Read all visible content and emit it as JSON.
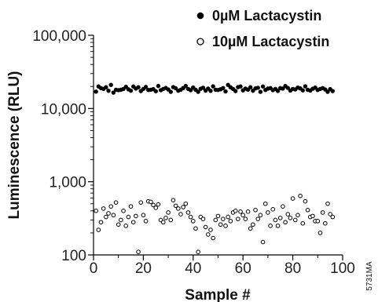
{
  "chart_data": {
    "type": "scatter",
    "title": "",
    "xlabel": "Sample #",
    "ylabel": "Luminescence (RLU)",
    "xlim": [
      0,
      100
    ],
    "ylim": [
      100,
      100000
    ],
    "y_scale": "log",
    "x_ticks": [
      0,
      20,
      40,
      60,
      80,
      100
    ],
    "x_tick_labels": [
      "0",
      "20",
      "40",
      "60",
      "80",
      "100"
    ],
    "y_ticks": [
      100,
      1000,
      10000,
      100000
    ],
    "y_tick_labels": [
      "100",
      "1,000",
      "10,000",
      "100,000"
    ],
    "grid": false,
    "legend_position": "top-right",
    "figure_code": "5731MA",
    "series": [
      {
        "name": "0µM Lactacystin",
        "marker": "filled-circle",
        "color": "#000000",
        "x": [
          1,
          2,
          3,
          4,
          5,
          6,
          7,
          8,
          9,
          10,
          11,
          12,
          13,
          14,
          15,
          16,
          17,
          18,
          19,
          20,
          21,
          22,
          23,
          24,
          25,
          26,
          27,
          28,
          29,
          30,
          31,
          32,
          33,
          34,
          35,
          36,
          37,
          38,
          39,
          40,
          41,
          42,
          43,
          44,
          45,
          46,
          47,
          48,
          49,
          50,
          51,
          52,
          53,
          54,
          55,
          56,
          57,
          58,
          59,
          60,
          61,
          62,
          63,
          64,
          65,
          66,
          67,
          68,
          69,
          70,
          71,
          72,
          73,
          74,
          75,
          76,
          77,
          78,
          79,
          80,
          81,
          82,
          83,
          84,
          85,
          86,
          87,
          88,
          89,
          90,
          91,
          92,
          93,
          94,
          95,
          96
        ],
        "y": [
          17000,
          20000,
          19000,
          18500,
          19500,
          17500,
          21000,
          16500,
          18000,
          17800,
          18000,
          18500,
          19800,
          18300,
          17500,
          20000,
          18700,
          19500,
          17300,
          18500,
          19700,
          17900,
          18000,
          18400,
          17200,
          20300,
          17800,
          18500,
          19100,
          18200,
          16900,
          19600,
          18900,
          17500,
          18000,
          19000,
          20300,
          18500,
          17800,
          19300,
          18000,
          16900,
          18600,
          19200,
          17600,
          18700,
          17400,
          20100,
          18000,
          17900,
          18300,
          19000,
          17100,
          21000,
          19500,
          18500,
          17300,
          19600,
          20000,
          17700,
          18700,
          18100,
          19500,
          17500,
          18800,
          19200,
          16900,
          20000,
          17900,
          18700,
          19000,
          17800,
          18500,
          17400,
          19000,
          18700,
          20300,
          19100,
          17600,
          18500,
          18200,
          19300,
          18800,
          17700,
          20100,
          18000,
          17600,
          18600,
          19300,
          17900,
          18500,
          19000,
          18200,
          16900,
          18400,
          17300
        ]
      },
      {
        "name": "10µM Lactacystin",
        "marker": "open-circle",
        "color": "#000000",
        "x": [
          1,
          2,
          3,
          4,
          5,
          6,
          7,
          8,
          9,
          10,
          11,
          12,
          13,
          14,
          15,
          16,
          17,
          18,
          19,
          20,
          21,
          22,
          23,
          24,
          25,
          26,
          27,
          28,
          29,
          30,
          31,
          32,
          33,
          34,
          35,
          36,
          37,
          38,
          39,
          40,
          41,
          42,
          43,
          44,
          45,
          46,
          47,
          48,
          49,
          50,
          51,
          52,
          53,
          54,
          55,
          56,
          57,
          58,
          59,
          60,
          61,
          62,
          63,
          64,
          65,
          66,
          67,
          68,
          69,
          70,
          71,
          72,
          73,
          74,
          75,
          76,
          77,
          78,
          79,
          80,
          81,
          82,
          83,
          84,
          85,
          86,
          87,
          88,
          89,
          90,
          91,
          92,
          93,
          94,
          95,
          96
        ],
        "y": [
          400,
          220,
          280,
          430,
          330,
          370,
          460,
          350,
          520,
          260,
          300,
          400,
          250,
          330,
          460,
          280,
          340,
          110,
          520,
          350,
          290,
          540,
          530,
          480,
          440,
          490,
          300,
          280,
          320,
          380,
          300,
          560,
          470,
          430,
          360,
          450,
          500,
          380,
          330,
          290,
          230,
          110,
          330,
          310,
          240,
          190,
          220,
          170,
          300,
          340,
          260,
          310,
          250,
          330,
          290,
          380,
          400,
          310,
          390,
          350,
          310,
          390,
          230,
          260,
          410,
          310,
          350,
          150,
          500,
          380,
          250,
          420,
          300,
          250,
          320,
          460,
          280,
          360,
          320,
          590,
          300,
          350,
          640,
          270,
          540,
          410,
          330,
          340,
          290,
          290,
          200,
          380,
          270,
          500,
          360,
          330
        ]
      }
    ]
  }
}
